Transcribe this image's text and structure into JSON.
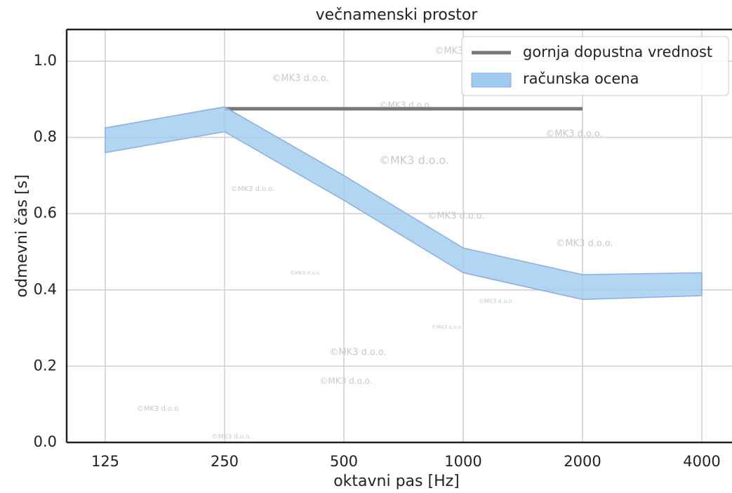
{
  "chart_data": {
    "type": "line",
    "title": "večnamenski prostor",
    "x_label": "oktavni pas [Hz]",
    "y_label": "odmevni čas [s]",
    "categories": [
      "125",
      "250",
      "500",
      "1000",
      "2000",
      "4000"
    ],
    "series": [
      {
        "name": "gornja dopustna vrednost",
        "color": "#777777",
        "values": [
          null,
          0.875,
          0.875,
          0.875,
          0.875,
          null
        ]
      },
      {
        "name": "računska ocena",
        "color": "#9fcbef",
        "edge": "#8aaee0",
        "lower": [
          0.76,
          0.815,
          0.635,
          0.445,
          0.375,
          0.385
        ],
        "upper": [
          0.825,
          0.88,
          0.7,
          0.51,
          0.44,
          0.445
        ]
      }
    ],
    "ylim": [
      0,
      1.083
    ],
    "yticks": [
      {
        "value": 0,
        "label": "0.0"
      },
      0.2,
      0.4,
      0.6,
      0.8,
      {
        "value": 1,
        "label": "1.0"
      }
    ],
    "grid": true,
    "legend": "upper-right",
    "watermark": "©MK3 d.o.o."
  }
}
